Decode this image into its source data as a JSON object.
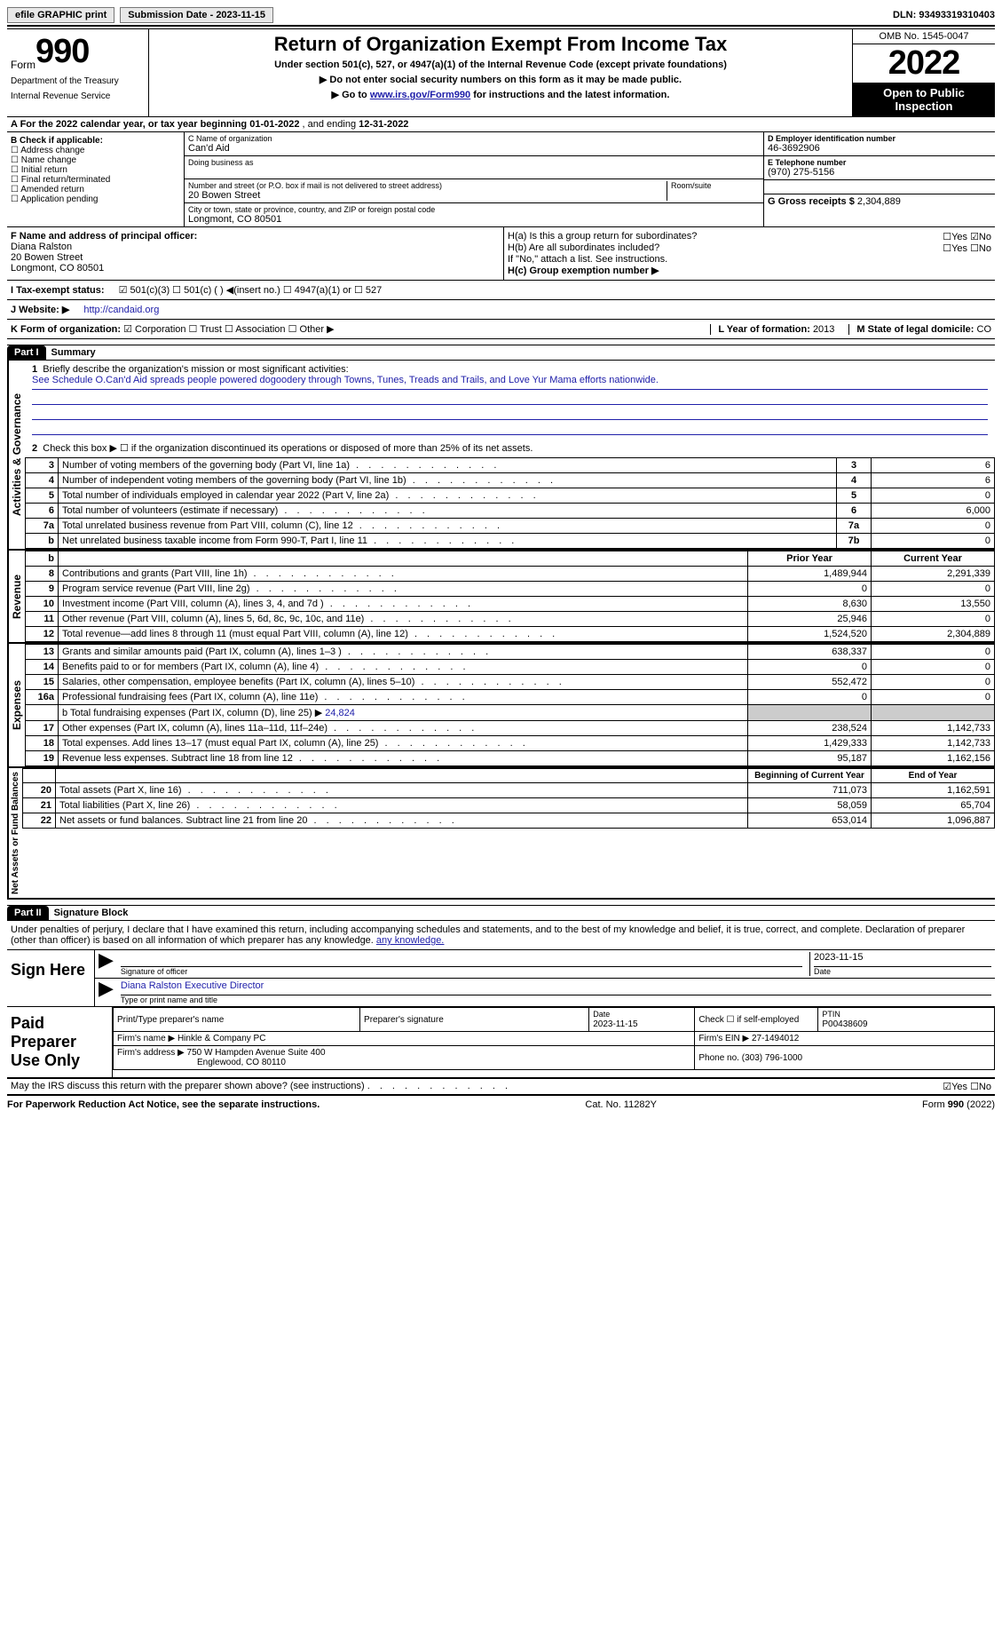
{
  "topbar": {
    "efile": "efile GRAPHIC print",
    "submission": "Submission Date - 2023-11-15",
    "dln": "DLN: 93493319310403"
  },
  "header": {
    "formWord": "Form",
    "formNum": "990",
    "title": "Return of Organization Exempt From Income Tax",
    "sub1": "Under section 501(c), 527, or 4947(a)(1) of the Internal Revenue Code (except private foundations)",
    "sub2": "▶ Do not enter social security numbers on this form as it may be made public.",
    "sub3a": "▶ Go to ",
    "sub3link": "www.irs.gov/Form990",
    "sub3b": " for instructions and the latest information.",
    "dept": "Department of the Treasury",
    "irs": "Internal Revenue Service",
    "omb": "OMB No. 1545-0047",
    "year": "2022",
    "open": "Open to Public Inspection"
  },
  "rowA": {
    "label": "A For the 2022 calendar year, or tax year beginning ",
    "begin": "01-01-2022",
    "mid": " , and ending ",
    "end": "12-31-2022"
  },
  "colB": {
    "label": "B Check if applicable:",
    "opts": [
      "Address change",
      "Name change",
      "Initial return",
      "Final return/terminated",
      "Amended return",
      "Application pending"
    ]
  },
  "colC": {
    "nameLab": "C Name of organization",
    "name": "Can'd Aid",
    "dbaLab": "Doing business as",
    "dba": "",
    "addrLab": "Number and street (or P.O. box if mail is not delivered to street address)",
    "roomLab": "Room/suite",
    "addr": "20 Bowen Street",
    "cityLab": "City or town, state or province, country, and ZIP or foreign postal code",
    "city": "Longmont, CO  80501"
  },
  "colD": {
    "einLab": "D Employer identification number",
    "ein": "46-3692906",
    "telLab": "E Telephone number",
    "tel": "(970) 275-5156",
    "grossLab": "G Gross receipts $ ",
    "gross": "2,304,889"
  },
  "rowF": {
    "fLab": "F Name and address of principal officer:",
    "fName": "Diana Ralston",
    "fAddr1": "20 Bowen Street",
    "fAddr2": "Longmont, CO  80501",
    "hA": "H(a) Is this a group return for subordinates?",
    "hAno": "☐Yes ☑No",
    "hB": "H(b) Are all subordinates included?",
    "hByn": "☐Yes ☐No",
    "hBnote": "If \"No,\" attach a list. See instructions.",
    "hC": "H(c) Group exemption number ▶"
  },
  "rowI": {
    "label": "I   Tax-exempt status:",
    "opts": "☑ 501(c)(3)    ☐ 501(c) (  ) ◀(insert no.)    ☐ 4947(a)(1) or    ☐ 527"
  },
  "rowJ": {
    "label": "J   Website: ▶",
    "url": "http://candaid.org"
  },
  "rowK": {
    "label": "K Form of organization:",
    "opts": "☑ Corporation  ☐ Trust  ☐ Association  ☐ Other ▶",
    "lLab": "L Year of formation: ",
    "lVal": "2013",
    "mLab": "M State of legal domicile: ",
    "mVal": "CO"
  },
  "part1": {
    "tag": "Part I",
    "title": "Summary"
  },
  "mission": {
    "num": "1",
    "label": "Briefly describe the organization's mission or most significant activities:",
    "text": "See Schedule O.Can'd Aid spreads people powered dogoodery through Towns, Tunes, Treads and Trails, and Love Yur Mama efforts nationwide."
  },
  "gov": {
    "sideLabel": "Activities & Governance",
    "l2": "Check this box ▶ ☐ if the organization discontinued its operations or disposed of more than 25% of its net assets.",
    "rows": [
      {
        "n": "3",
        "d": "Number of voting members of the governing body (Part VI, line 1a)",
        "b": "3",
        "v": "6"
      },
      {
        "n": "4",
        "d": "Number of independent voting members of the governing body (Part VI, line 1b)",
        "b": "4",
        "v": "6"
      },
      {
        "n": "5",
        "d": "Total number of individuals employed in calendar year 2022 (Part V, line 2a)",
        "b": "5",
        "v": "0"
      },
      {
        "n": "6",
        "d": "Total number of volunteers (estimate if necessary)",
        "b": "6",
        "v": "6,000"
      },
      {
        "n": "7a",
        "d": "Total unrelated business revenue from Part VIII, column (C), line 12",
        "b": "7a",
        "v": "0"
      },
      {
        "n": "b",
        "d": "Net unrelated business taxable income from Form 990-T, Part I, line 11",
        "b": "7b",
        "v": "0"
      }
    ]
  },
  "rev": {
    "sideLabel": "Revenue",
    "hPrior": "Prior Year",
    "hCurr": "Current Year",
    "rows": [
      {
        "n": "8",
        "d": "Contributions and grants (Part VIII, line 1h)",
        "p": "1,489,944",
        "c": "2,291,339"
      },
      {
        "n": "9",
        "d": "Program service revenue (Part VIII, line 2g)",
        "p": "0",
        "c": "0"
      },
      {
        "n": "10",
        "d": "Investment income (Part VIII, column (A), lines 3, 4, and 7d )",
        "p": "8,630",
        "c": "13,550"
      },
      {
        "n": "11",
        "d": "Other revenue (Part VIII, column (A), lines 5, 6d, 8c, 9c, 10c, and 11e)",
        "p": "25,946",
        "c": "0"
      },
      {
        "n": "12",
        "d": "Total revenue—add lines 8 through 11 (must equal Part VIII, column (A), line 12)",
        "p": "1,524,520",
        "c": "2,304,889"
      }
    ]
  },
  "exp": {
    "sideLabel": "Expenses",
    "rows": [
      {
        "n": "13",
        "d": "Grants and similar amounts paid (Part IX, column (A), lines 1–3 )",
        "p": "638,337",
        "c": "0"
      },
      {
        "n": "14",
        "d": "Benefits paid to or for members (Part IX, column (A), line 4)",
        "p": "0",
        "c": "0"
      },
      {
        "n": "15",
        "d": "Salaries, other compensation, employee benefits (Part IX, column (A), lines 5–10)",
        "p": "552,472",
        "c": "0"
      },
      {
        "n": "16a",
        "d": "Professional fundraising fees (Part IX, column (A), line 11e)",
        "p": "0",
        "c": "0"
      }
    ],
    "l16b": "b  Total fundraising expenses (Part IX, column (D), line 25) ▶",
    "l16bVal": "24,824",
    "rows2": [
      {
        "n": "17",
        "d": "Other expenses (Part IX, column (A), lines 11a–11d, 11f–24e)",
        "p": "238,524",
        "c": "1,142,733"
      },
      {
        "n": "18",
        "d": "Total expenses. Add lines 13–17 (must equal Part IX, column (A), line 25)",
        "p": "1,429,333",
        "c": "1,142,733"
      },
      {
        "n": "19",
        "d": "Revenue less expenses. Subtract line 18 from line 12",
        "p": "95,187",
        "c": "1,162,156"
      }
    ]
  },
  "net": {
    "sideLabel": "Net Assets or Fund Balances",
    "hBeg": "Beginning of Current Year",
    "hEnd": "End of Year",
    "rows": [
      {
        "n": "20",
        "d": "Total assets (Part X, line 16)",
        "p": "711,073",
        "c": "1,162,591"
      },
      {
        "n": "21",
        "d": "Total liabilities (Part X, line 26)",
        "p": "58,059",
        "c": "65,704"
      },
      {
        "n": "22",
        "d": "Net assets or fund balances. Subtract line 21 from line 20",
        "p": "653,014",
        "c": "1,096,887"
      }
    ]
  },
  "part2": {
    "tag": "Part II",
    "title": "Signature Block"
  },
  "sig": {
    "decl": "Under penalties of perjury, I declare that I have examined this return, including accompanying schedules and statements, and to the best of my knowledge and belief, it is true, correct, and complete. Declaration of preparer (other than officer) is based on all information of which preparer has any knowledge.",
    "signHere": "Sign Here",
    "sigLab": "Signature of officer",
    "dateLab": "Date",
    "date": "2023-11-15",
    "name": "Diana Ralston  Executive Director",
    "nameLab": "Type or print name and title"
  },
  "paid": {
    "left": "Paid Preparer Use Only",
    "h1": "Print/Type preparer's name",
    "h2": "Preparer's signature",
    "h3a": "Date",
    "h3": "2023-11-15",
    "h4": "Check ☐ if self-employed",
    "h5a": "PTIN",
    "h5": "P00438609",
    "firmLab": "Firm's name    ▶ ",
    "firm": "Hinkle & Company PC",
    "einLab": "Firm's EIN ▶ ",
    "ein": "27-1494012",
    "addrLab": "Firm's address ▶ ",
    "addr1": "750 W Hampden Avenue Suite 400",
    "addr2": "Englewood, CO  80110",
    "phoneLab": "Phone no. ",
    "phone": "(303) 796-1000"
  },
  "discuss": {
    "q": "May the IRS discuss this return with the preparer shown above? (see instructions)",
    "a": "☑Yes  ☐No"
  },
  "footer": {
    "left": "For Paperwork Reduction Act Notice, see the separate instructions.",
    "mid": "Cat. No. 11282Y",
    "right": "Form 990 (2022)"
  }
}
